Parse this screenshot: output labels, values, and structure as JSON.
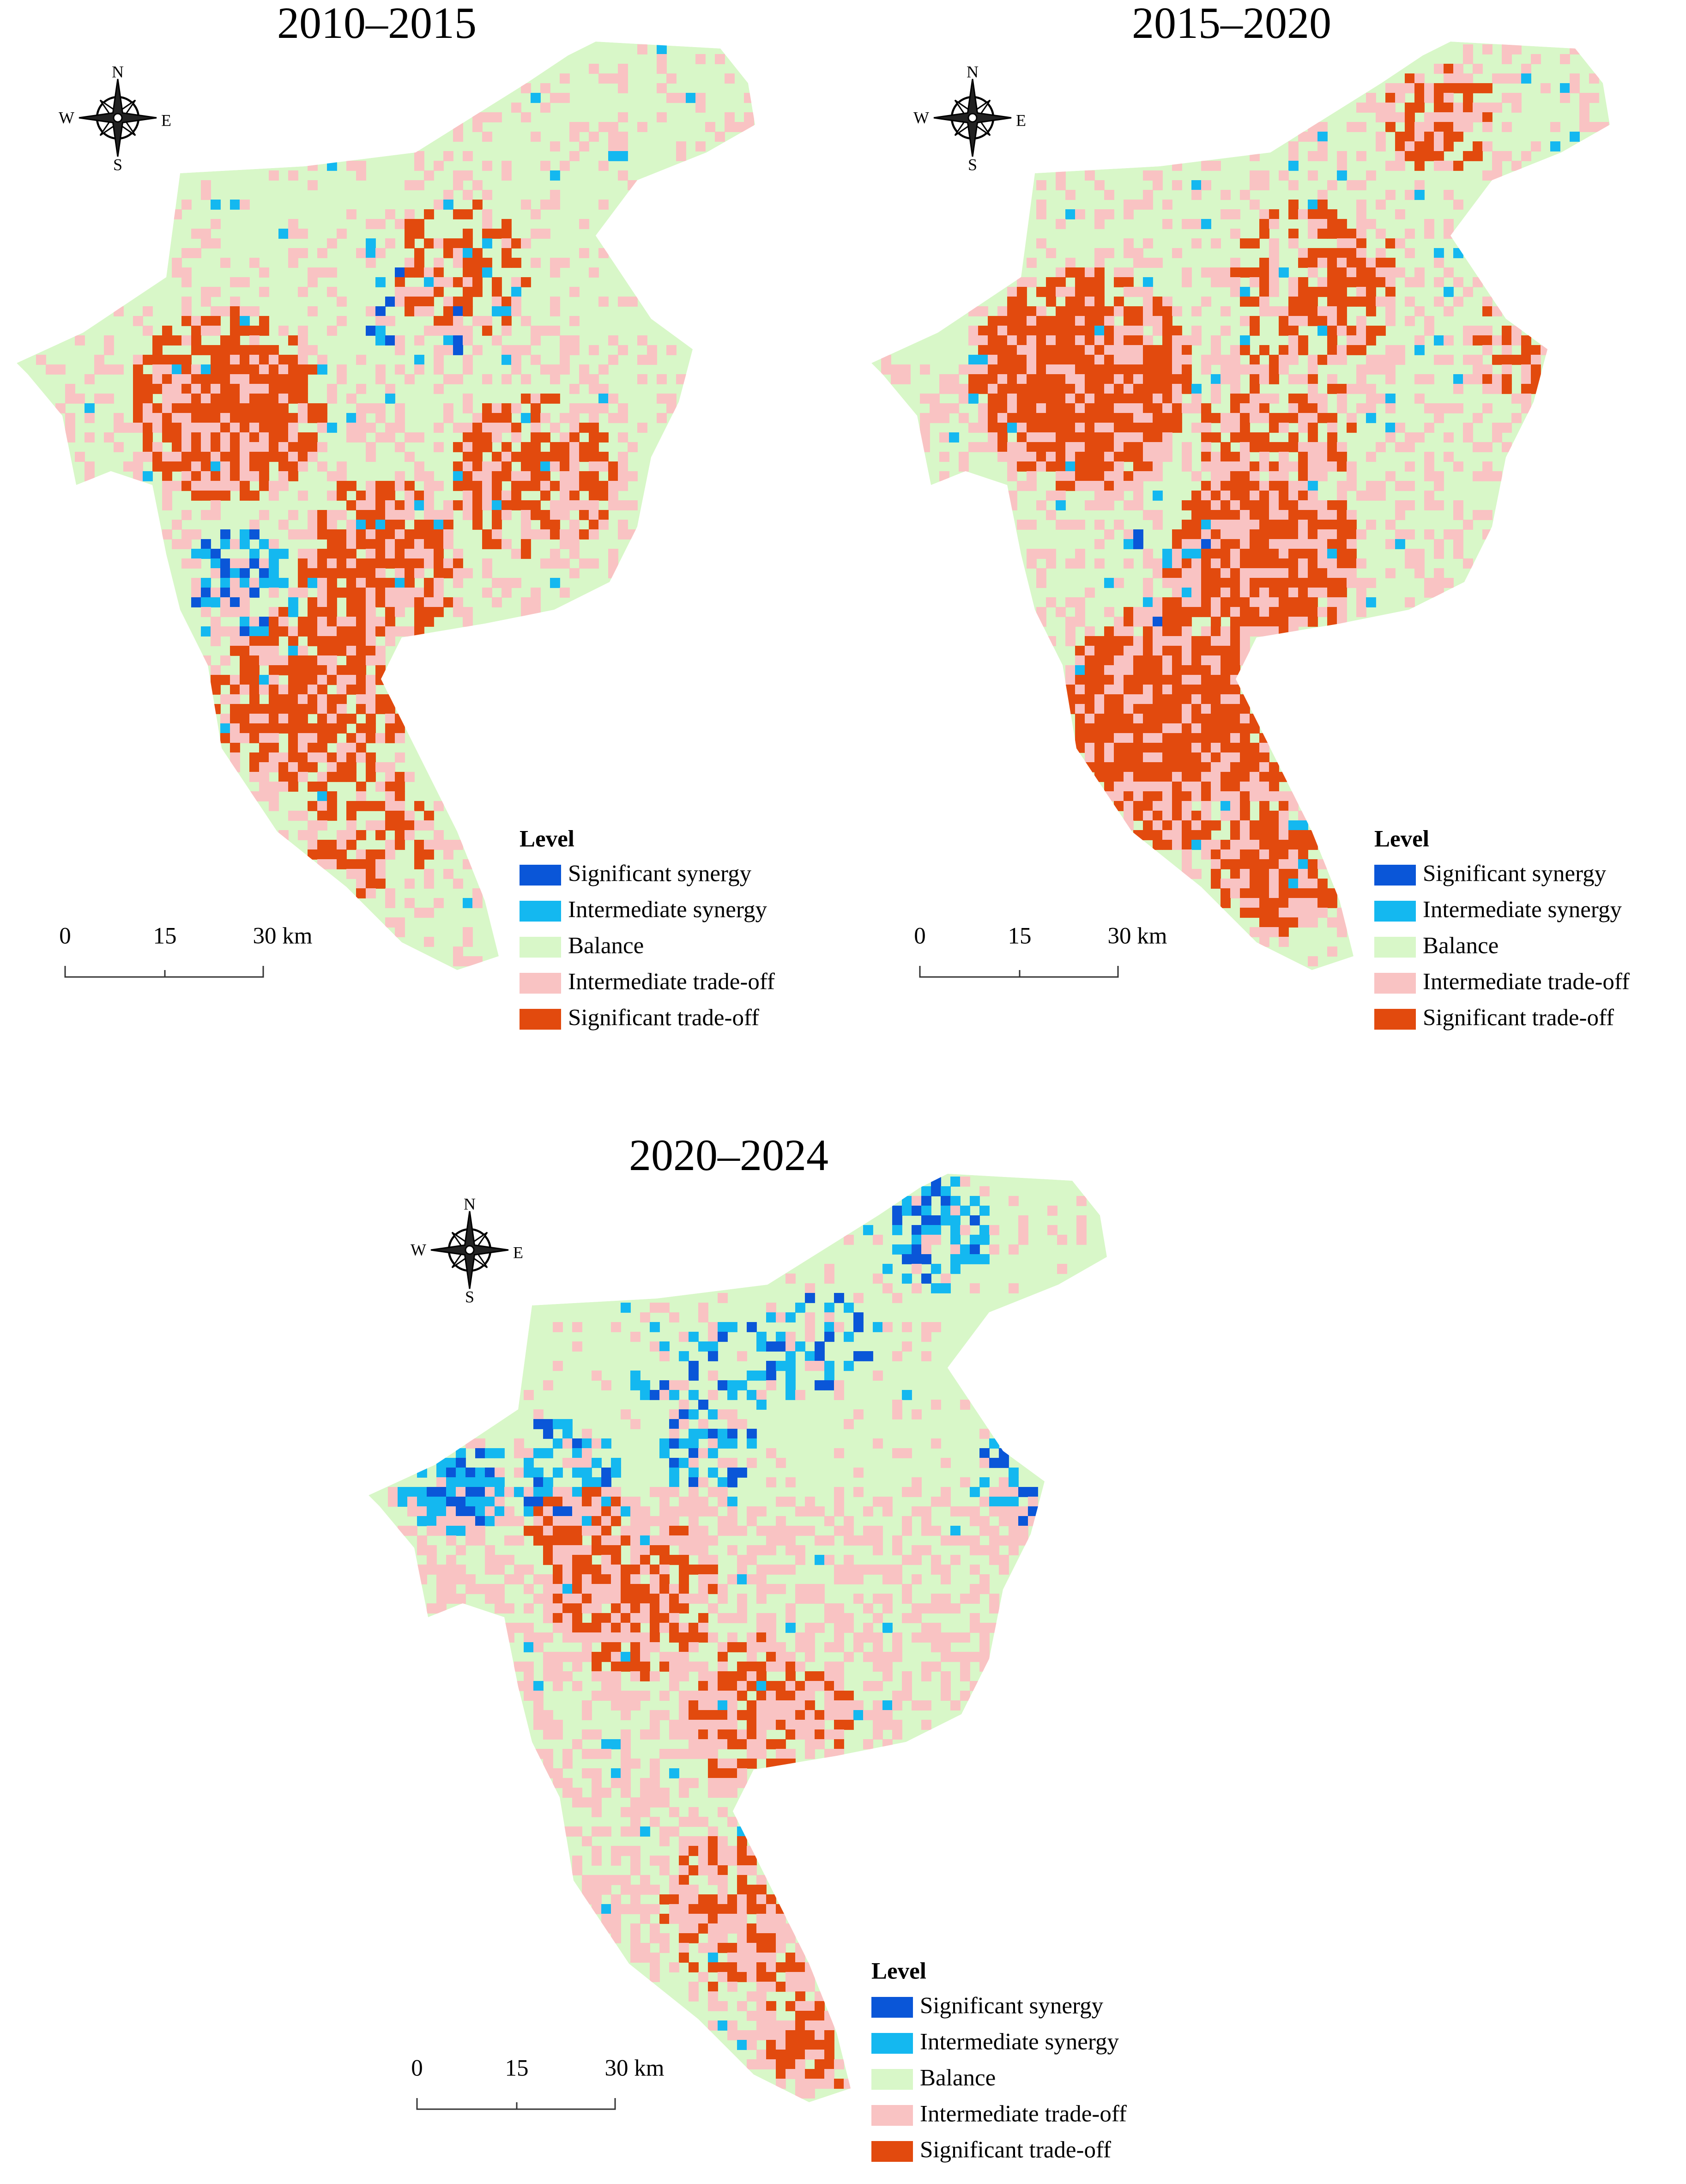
{
  "panels": [
    {
      "title": "2010–2015",
      "compass": {
        "n": "N",
        "e": "E",
        "s": "S",
        "w": "W"
      },
      "scale_bar": [
        "0",
        "15",
        "30 km"
      ],
      "legend": {
        "title": "Level",
        "items": [
          {
            "label": "Significant synergy",
            "color": "#0a56d8"
          },
          {
            "label": "Intermediate synergy",
            "color": "#14b8f0"
          },
          {
            "label": "Balance",
            "color": "#d8f7c8"
          },
          {
            "label": "Intermediate trade-off",
            "color": "#f9c3c3"
          },
          {
            "label": "Significant trade-off",
            "color": "#e24a0e"
          }
        ]
      }
    },
    {
      "title": "2015–2020",
      "compass": {
        "n": "N",
        "e": "E",
        "s": "S",
        "w": "W"
      },
      "scale_bar": [
        "0",
        "15",
        "30 km"
      ],
      "legend": {
        "title": "Level",
        "items": [
          {
            "label": "Significant synergy",
            "color": "#0a56d8"
          },
          {
            "label": "Intermediate synergy",
            "color": "#14b8f0"
          },
          {
            "label": "Balance",
            "color": "#d8f7c8"
          },
          {
            "label": "Intermediate trade-off",
            "color": "#f9c3c3"
          },
          {
            "label": "Significant trade-off",
            "color": "#e24a0e"
          }
        ]
      }
    },
    {
      "title": "2020–2024",
      "compass": {
        "n": "N",
        "e": "E",
        "s": "S",
        "w": "W"
      },
      "scale_bar": [
        "0",
        "15",
        "30 km"
      ],
      "legend": {
        "title": "Level",
        "items": [
          {
            "label": "Significant synergy",
            "color": "#0a56d8"
          },
          {
            "label": "Intermediate synergy",
            "color": "#14b8f0"
          },
          {
            "label": "Balance",
            "color": "#d8f7c8"
          },
          {
            "label": "Intermediate trade-off",
            "color": "#f9c3c3"
          },
          {
            "label": "Significant trade-off",
            "color": "#e24a0e"
          }
        ]
      }
    }
  ]
}
